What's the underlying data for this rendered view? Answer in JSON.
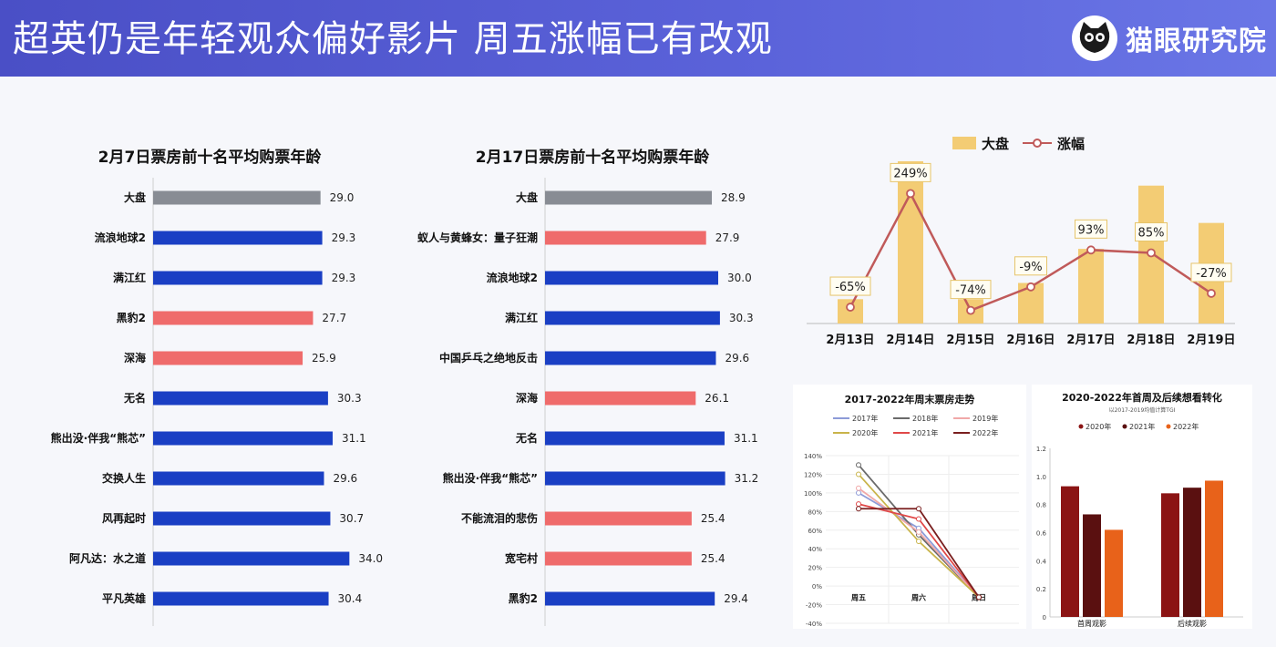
{
  "header": {
    "title": "超英仍是年轻观众偏好影片  周五涨幅已有改观",
    "brand": "猫眼研究院",
    "logo_icon": "cat-eye-icon"
  },
  "colors": {
    "gray_bar": "#888c94",
    "blue_bar": "#1a3fc4",
    "pink_bar": "#ef6b6b",
    "gold_bar": "#f3cc74",
    "growth_line": "#c05a5a"
  },
  "chart_data": [
    {
      "id": "feb7",
      "type": "bar",
      "orientation": "horizontal",
      "title": "2月7日票房前十名平均购票年龄",
      "categories": [
        "大盘",
        "流浪地球2",
        "满江红",
        "黑豹2",
        "深海",
        "无名",
        "熊出没·伴我“熊芯”",
        "交换人生",
        "风再起时",
        "阿凡达：水之道",
        "平凡英雄"
      ],
      "values": [
        29.0,
        29.3,
        29.3,
        27.7,
        25.9,
        30.3,
        31.1,
        29.6,
        30.7,
        34.0,
        30.4
      ],
      "value_labels": [
        "29.0",
        "29.3",
        "29.3",
        "27.7",
        "25.9",
        "30.3",
        "31.1",
        "29.6",
        "30.7",
        "34.0",
        "30.4"
      ],
      "bar_colors": [
        "gray",
        "blue",
        "blue",
        "pink",
        "pink",
        "blue",
        "blue",
        "blue",
        "blue",
        "blue",
        "blue"
      ],
      "xlim": [
        0,
        36
      ]
    },
    {
      "id": "feb17",
      "type": "bar",
      "orientation": "horizontal",
      "title": "2月17日票房前十名平均购票年龄",
      "categories": [
        "大盘",
        "蚁人与黄蜂女：量子狂潮",
        "流浪地球2",
        "满江红",
        "中国乒乓之绝地反击",
        "深海",
        "无名",
        "熊出没·伴我“熊芯”",
        "不能流泪的悲伤",
        "宽宅村",
        "黑豹2"
      ],
      "values": [
        28.9,
        27.9,
        30.0,
        30.3,
        29.6,
        26.1,
        31.1,
        31.2,
        25.4,
        25.4,
        29.4
      ],
      "value_labels": [
        "28.9",
        "27.9",
        "30.0",
        "30.3",
        "29.6",
        "26.1",
        "31.1",
        "31.2",
        "25.4",
        "25.4",
        "29.4"
      ],
      "bar_colors": [
        "gray",
        "pink",
        "blue",
        "blue",
        "blue",
        "pink",
        "blue",
        "blue",
        "pink",
        "pink",
        "blue"
      ],
      "xlim": [
        0,
        36
      ]
    },
    {
      "id": "daily",
      "type": "bar",
      "title": "",
      "legend": [
        "大盘",
        "涨幅"
      ],
      "legend_position": "top-center",
      "categories": [
        "2月13日",
        "2月14日",
        "2月15日",
        "2月16日",
        "2月17日",
        "2月18日",
        "2月19日"
      ],
      "series": [
        {
          "name": "大盘",
          "type": "bar",
          "values": [
            0.15,
            1.0,
            0.15,
            0.25,
            0.46,
            0.85,
            0.62
          ]
        },
        {
          "name": "涨幅",
          "type": "line",
          "values": [
            -65,
            249,
            -74,
            -9,
            93,
            85,
            -27
          ],
          "labels": [
            "-65%",
            "249%",
            "-74%",
            "-9%",
            "93%",
            "85%",
            "-27%"
          ]
        }
      ]
    },
    {
      "id": "weekend",
      "type": "line",
      "title": "2017-2022年周末票房走势",
      "categories": [
        "周五",
        "周六",
        "周日"
      ],
      "yticks": [
        "140%",
        "120%",
        "100%",
        "80%",
        "60%",
        "40%",
        "20%",
        "0%",
        "-20%",
        "-40%"
      ],
      "ylim": [
        -40,
        140
      ],
      "series": [
        {
          "name": "2017年",
          "color": "#8d9bd8",
          "values": [
            100,
            62,
            -12
          ]
        },
        {
          "name": "2018年",
          "color": "#6a6a6a",
          "values": [
            130,
            55,
            -12
          ]
        },
        {
          "name": "2019年",
          "color": "#f0a8a8",
          "values": [
            105,
            58,
            -12
          ]
        },
        {
          "name": "2020年",
          "color": "#c9b44a",
          "values": [
            120,
            48,
            -12
          ]
        },
        {
          "name": "2021年",
          "color": "#e04848",
          "values": [
            88,
            72,
            -12
          ]
        },
        {
          "name": "2022年",
          "color": "#7a1f1f",
          "values": [
            83,
            83,
            -12
          ]
        }
      ]
    },
    {
      "id": "conversion",
      "type": "bar",
      "title": "2020-2022年首周及后续想看转化",
      "subtitle": "以2017-2019均值计算TGI",
      "categories": [
        "首周观影",
        "后续观影"
      ],
      "yticks": [
        "1.2",
        "1.0",
        "0.8",
        "0.6",
        "0.4",
        "0.2",
        "0"
      ],
      "ylim": [
        0,
        1.2
      ],
      "series": [
        {
          "name": "2020年",
          "color": "#8b1414",
          "values": [
            0.93,
            0.88
          ]
        },
        {
          "name": "2021年",
          "color": "#5a1010",
          "values": [
            0.73,
            0.92
          ]
        },
        {
          "name": "2022年",
          "color": "#e8621a",
          "values": [
            0.62,
            0.97
          ]
        }
      ]
    }
  ]
}
